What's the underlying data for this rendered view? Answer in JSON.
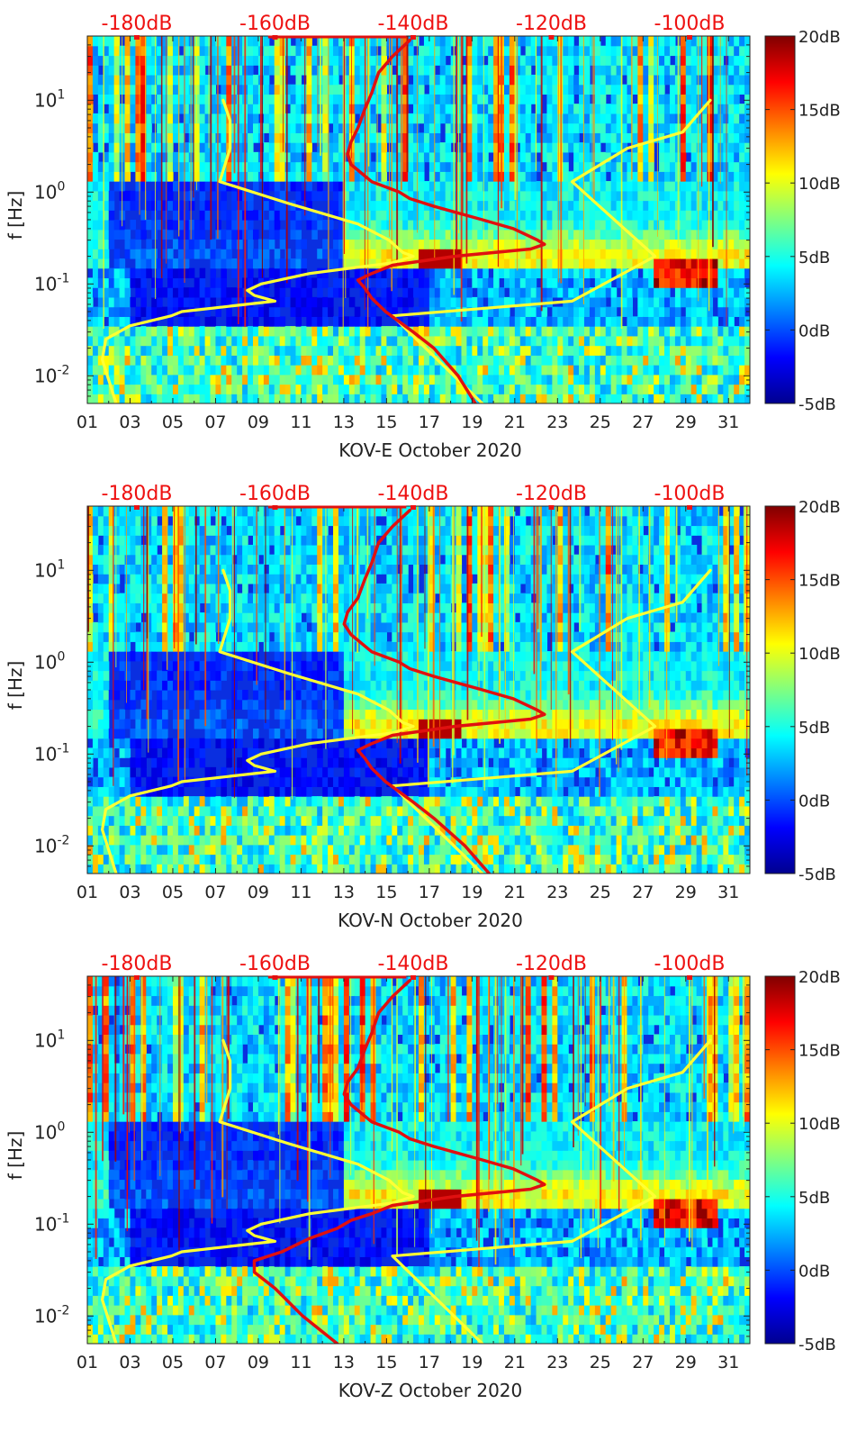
{
  "colors": {
    "power_axis": "#ee1111",
    "noise_model": "#ffff33",
    "noise_model_outline": "#e6e600",
    "measured_psd": "#e01010",
    "colormap": [
      "#00008f",
      "#0000ff",
      "#0080ff",
      "#00ffff",
      "#80ff80",
      "#ffff00",
      "#ff8000",
      "#ff0000",
      "#800000"
    ]
  },
  "chart_data": [
    {
      "type": "heatmap",
      "title": "",
      "xlabel": "KOV-E October 2020",
      "ylabel": "f [Hz]",
      "x_ticks": [
        "01",
        "03",
        "05",
        "07",
        "09",
        "11",
        "13",
        "15",
        "17",
        "19",
        "21",
        "23",
        "25",
        "27",
        "29",
        "31"
      ],
      "y_ticks": [
        "10^-2",
        "10^-1",
        "10^0",
        "10^1"
      ],
      "y_tick_labels": [
        {
          "base": "10",
          "exp": "-2"
        },
        {
          "base": "10",
          "exp": "-1"
        },
        {
          "base": "10",
          "exp": "0"
        },
        {
          "base": "10",
          "exp": "1"
        }
      ],
      "ylim": [
        0.005,
        50
      ],
      "yscale": "log",
      "xlim": [
        1,
        32
      ],
      "colorbar": {
        "ticks": [
          "20dB",
          "15dB",
          "10dB",
          "5dB",
          "0dB",
          "-5dB"
        ],
        "range": [
          -5,
          20
        ]
      },
      "top_axis_ticks": [
        "-180dB",
        "-160dB",
        "-140dB",
        "-120dB",
        "-100dB"
      ],
      "top_axis_values": [
        -180,
        -160,
        -140,
        -120,
        -100
      ],
      "curves": [
        {
          "style": "yellow",
          "f": [
            10,
            6,
            3,
            1.3,
            0.75,
            0.45,
            0.3,
            0.22,
            0.2,
            0.17,
            0.13,
            0.1,
            0.085,
            0.075,
            0.065,
            0.05,
            0.045,
            0.035,
            0.025,
            0.015,
            0.005
          ],
          "db": [
            -167.5,
            -166.5,
            -166.5,
            -168,
            -158,
            -148,
            -143.5,
            -141.5,
            -140,
            -143,
            -155,
            -162,
            -164,
            -163,
            -160,
            -173.5,
            -175,
            -181,
            -184.5,
            -185,
            -183
          ]
        },
        {
          "style": "yellow",
          "f": [
            10,
            4.5,
            3,
            1.3,
            0.2,
            0.065,
            0.045,
            0.005
          ],
          "db": [
            -97,
            -101,
            -109,
            -117,
            -105,
            -117,
            -143,
            -130
          ]
        },
        {
          "style": "red",
          "f": [
            45,
            30,
            20,
            12,
            8,
            5,
            3.5,
            2.6,
            2,
            1.3,
            1,
            0.85,
            0.7,
            0.5,
            0.4,
            0.3,
            0.27,
            0.24,
            0.2,
            0.16,
            0.13,
            0.11,
            0.09,
            0.07,
            0.05,
            0.03,
            0.02,
            0.01,
            0.005
          ],
          "db": [
            -140.5,
            -143,
            -145,
            -146,
            -147,
            -148,
            -149,
            -149.5,
            -149,
            -146,
            -142,
            -140.5,
            -137,
            -130,
            -125.5,
            -122,
            -121,
            -123,
            -134,
            -143,
            -146,
            -148,
            -147,
            -146,
            -144,
            -140,
            -137,
            -133.5,
            -131
          ]
        }
      ]
    },
    {
      "type": "heatmap",
      "title": "",
      "xlabel": "KOV-N October 2020",
      "ylabel": "f [Hz]",
      "x_ticks": [
        "01",
        "03",
        "05",
        "07",
        "09",
        "11",
        "13",
        "15",
        "17",
        "19",
        "21",
        "23",
        "25",
        "27",
        "29",
        "31"
      ],
      "y_ticks": [
        "10^-2",
        "10^-1",
        "10^0",
        "10^1"
      ],
      "y_tick_labels": [
        {
          "base": "10",
          "exp": "-2"
        },
        {
          "base": "10",
          "exp": "-1"
        },
        {
          "base": "10",
          "exp": "0"
        },
        {
          "base": "10",
          "exp": "1"
        }
      ],
      "ylim": [
        0.005,
        50
      ],
      "yscale": "log",
      "xlim": [
        1,
        32
      ],
      "colorbar": {
        "ticks": [
          "20dB",
          "15dB",
          "10dB",
          "5dB",
          "0dB",
          "-5dB"
        ],
        "range": [
          -5,
          20
        ]
      },
      "top_axis_ticks": [
        "-180dB",
        "-160dB",
        "-140dB",
        "-120dB",
        "-100dB"
      ],
      "top_axis_values": [
        -180,
        -160,
        -140,
        -120,
        -100
      ],
      "curves": [
        {
          "style": "yellow",
          "f": [
            10,
            6,
            3,
            1.3,
            0.75,
            0.45,
            0.3,
            0.22,
            0.2,
            0.17,
            0.13,
            0.1,
            0.085,
            0.075,
            0.065,
            0.05,
            0.045,
            0.035,
            0.025,
            0.015,
            0.005
          ],
          "db": [
            -167.5,
            -166.5,
            -166.5,
            -168,
            -158,
            -148,
            -143.5,
            -141.5,
            -140,
            -143,
            -155,
            -162,
            -164,
            -163,
            -160,
            -173.5,
            -175,
            -181,
            -184.5,
            -185,
            -183
          ]
        },
        {
          "style": "yellow",
          "f": [
            10,
            4.5,
            3,
            1.3,
            0.2,
            0.065,
            0.045,
            0.005
          ],
          "db": [
            -97,
            -101,
            -109,
            -117,
            -105,
            -117,
            -143,
            -130
          ]
        },
        {
          "style": "red",
          "f": [
            45,
            30,
            20,
            12,
            8,
            5,
            3.5,
            2.6,
            2,
            1.3,
            1,
            0.85,
            0.7,
            0.5,
            0.4,
            0.3,
            0.27,
            0.24,
            0.2,
            0.16,
            0.13,
            0.11,
            0.09,
            0.07,
            0.05,
            0.03,
            0.02,
            0.01,
            0.005
          ],
          "db": [
            -140.5,
            -143,
            -145,
            -146,
            -147,
            -148,
            -149.5,
            -150,
            -149,
            -146,
            -142,
            -140.5,
            -137,
            -130,
            -125.5,
            -122,
            -121,
            -123,
            -134,
            -143,
            -146,
            -148,
            -147,
            -146,
            -144,
            -140,
            -137,
            -132.5,
            -129
          ]
        }
      ]
    },
    {
      "type": "heatmap",
      "title": "",
      "xlabel": "KOV-Z October 2020",
      "ylabel": "f [Hz]",
      "x_ticks": [
        "01",
        "03",
        "05",
        "07",
        "09",
        "11",
        "13",
        "15",
        "17",
        "19",
        "21",
        "23",
        "25",
        "27",
        "29",
        "31"
      ],
      "y_ticks": [
        "10^-2",
        "10^-1",
        "10^0",
        "10^1"
      ],
      "y_tick_labels": [
        {
          "base": "10",
          "exp": "-2"
        },
        {
          "base": "10",
          "exp": "-1"
        },
        {
          "base": "10",
          "exp": "0"
        },
        {
          "base": "10",
          "exp": "1"
        }
      ],
      "ylim": [
        0.005,
        50
      ],
      "yscale": "log",
      "xlim": [
        1,
        32
      ],
      "colorbar": {
        "ticks": [
          "20dB",
          "15dB",
          "10dB",
          "5dB",
          "0dB",
          "-5dB"
        ],
        "range": [
          -5,
          20
        ]
      },
      "top_axis_ticks": [
        "-180dB",
        "-160dB",
        "-140dB",
        "-120dB",
        "-100dB"
      ],
      "top_axis_values": [
        -180,
        -160,
        -140,
        -120,
        -100
      ],
      "curves": [
        {
          "style": "yellow",
          "f": [
            10,
            6,
            3,
            1.3,
            0.75,
            0.45,
            0.3,
            0.22,
            0.2,
            0.17,
            0.13,
            0.1,
            0.085,
            0.075,
            0.065,
            0.05,
            0.045,
            0.035,
            0.025,
            0.015,
            0.005
          ],
          "db": [
            -167.5,
            -166.5,
            -166.5,
            -168,
            -158,
            -148,
            -143.5,
            -141.5,
            -140,
            -143,
            -155,
            -162,
            -164,
            -163,
            -160,
            -173.5,
            -175,
            -181,
            -184.5,
            -185,
            -183
          ]
        },
        {
          "style": "yellow",
          "f": [
            10,
            4.5,
            3,
            1.3,
            0.2,
            0.065,
            0.045,
            0.005
          ],
          "db": [
            -97,
            -101,
            -109,
            -117,
            -105,
            -117,
            -143,
            -130
          ]
        },
        {
          "style": "red",
          "f": [
            45,
            30,
            20,
            12,
            8,
            5,
            3.5,
            2.6,
            2,
            1.3,
            1,
            0.85,
            0.7,
            0.5,
            0.4,
            0.3,
            0.27,
            0.24,
            0.2,
            0.16,
            0.13,
            0.11,
            0.09,
            0.07,
            0.05,
            0.04,
            0.03,
            0.02,
            0.01,
            0.005
          ],
          "db": [
            -140.5,
            -143,
            -145,
            -146,
            -147,
            -148,
            -149.5,
            -150,
            -149,
            -146,
            -142,
            -140.5,
            -137,
            -130,
            -125.5,
            -122,
            -121,
            -123,
            -134,
            -143,
            -146,
            -149,
            -151,
            -155,
            -159,
            -163,
            -163,
            -160,
            -156,
            -151
          ]
        }
      ]
    }
  ]
}
